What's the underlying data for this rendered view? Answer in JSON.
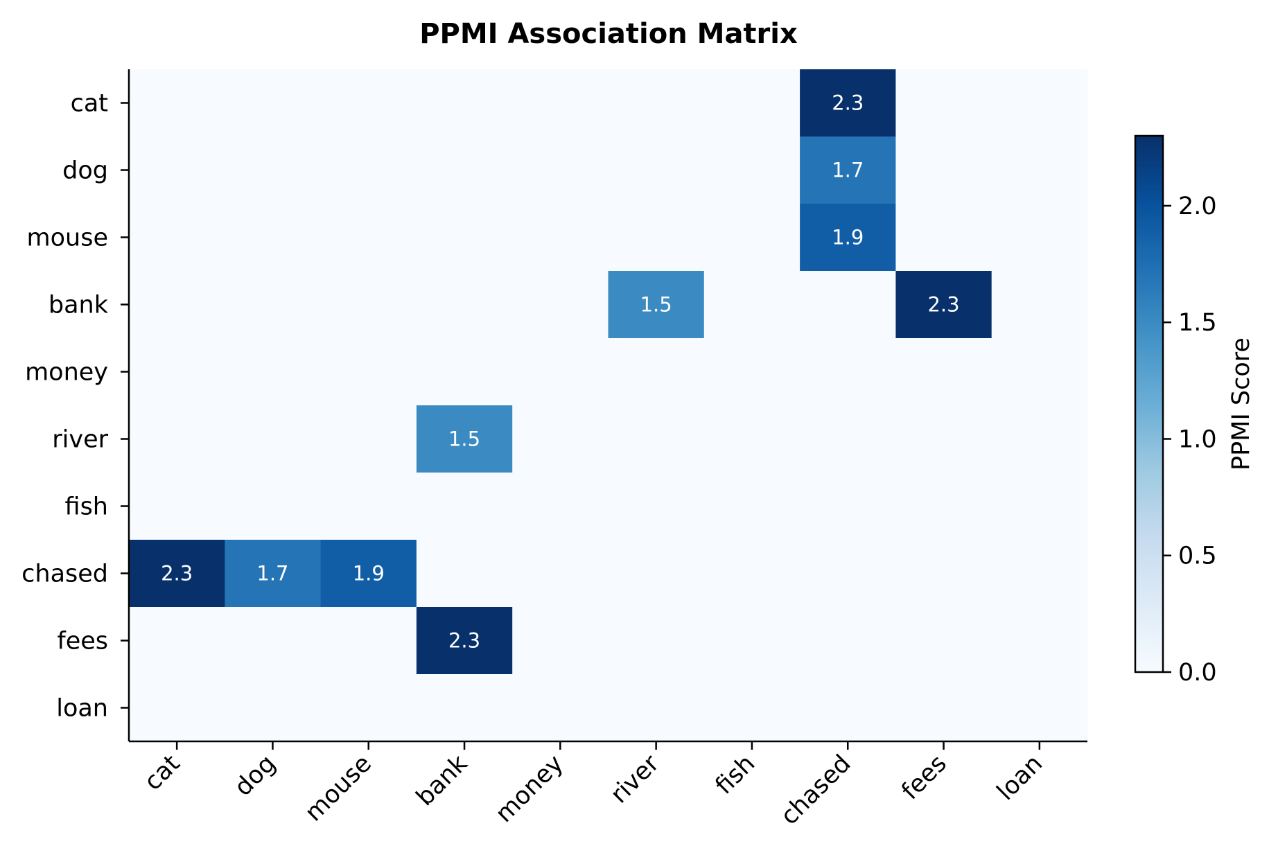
{
  "chart_data": {
    "type": "heatmap",
    "title": "PPMI Association Matrix",
    "row_labels": [
      "cat",
      "dog",
      "mouse",
      "bank",
      "money",
      "river",
      "fish",
      "chased",
      "fees",
      "loan"
    ],
    "col_labels": [
      "cat",
      "dog",
      "mouse",
      "bank",
      "money",
      "river",
      "fish",
      "chased",
      "fees",
      "loan"
    ],
    "values": [
      [
        0,
        0,
        0,
        0,
        0,
        0,
        0,
        2.3,
        0,
        0
      ],
      [
        0,
        0,
        0,
        0,
        0,
        0,
        0,
        1.7,
        0,
        0
      ],
      [
        0,
        0,
        0,
        0,
        0,
        0,
        0,
        1.9,
        0,
        0
      ],
      [
        0,
        0,
        0,
        0,
        0,
        1.5,
        0,
        0,
        2.3,
        0
      ],
      [
        0,
        0,
        0,
        0,
        0,
        0,
        0,
        0,
        0,
        0
      ],
      [
        0,
        0,
        0,
        1.5,
        0,
        0,
        0,
        0,
        0,
        0
      ],
      [
        0,
        0,
        0,
        0,
        0,
        0,
        0,
        0,
        0,
        0
      ],
      [
        2.3,
        1.7,
        1.9,
        0,
        0,
        0,
        0,
        0,
        0,
        0
      ],
      [
        0,
        0,
        0,
        2.3,
        0,
        0,
        0,
        0,
        0,
        0
      ],
      [
        0,
        0,
        0,
        0,
        0,
        0,
        0,
        0,
        0,
        0
      ]
    ],
    "annotate_nonzero": true,
    "colormap": "Blues",
    "colorbar": {
      "label": "PPMI Score",
      "range": [
        0,
        2.3
      ],
      "ticks": [
        0.0,
        0.5,
        1.0,
        1.5,
        2.0
      ],
      "tick_labels": [
        "0.0",
        "0.5",
        "1.0",
        "1.5",
        "2.0"
      ]
    },
    "xtick_rotation": 45,
    "grid": false
  }
}
